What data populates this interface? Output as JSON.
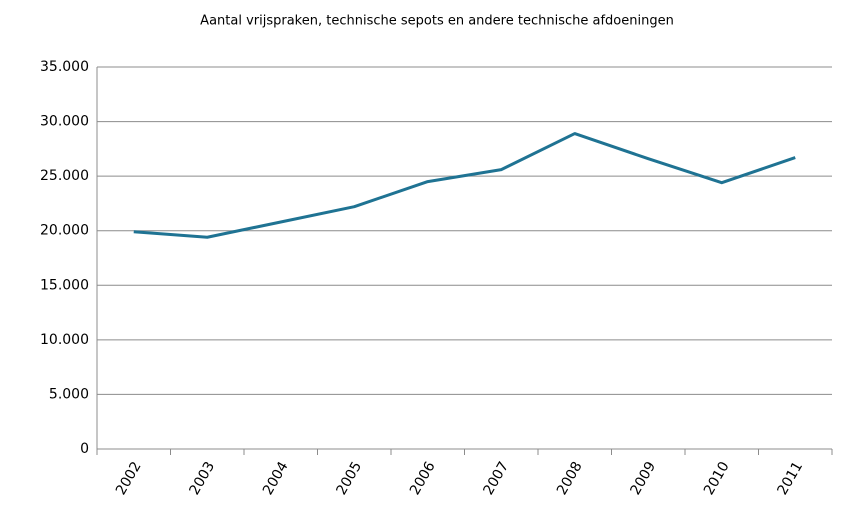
{
  "chart_data": {
    "type": "line",
    "title": "Aantal vrijspraken, technische sepots en andere technische afdoeningen",
    "categories": [
      "2002",
      "2003",
      "2004",
      "2005",
      "2006",
      "2007",
      "2008",
      "2009",
      "2010",
      "2011"
    ],
    "series": [
      {
        "name": "Aantal vrijspraken, technische sepots en andere technische afdoeningen",
        "color": "#1f7393",
        "values": [
          19900,
          19400,
          20800,
          22200,
          24500,
          25600,
          28900,
          26600,
          24400,
          26700
        ]
      }
    ],
    "ylim": [
      0,
      35000
    ],
    "yticks": [
      0,
      {
        "value": 5000,
        "label": "5.000"
      },
      {
        "value": 10000,
        "label": "10.000"
      },
      {
        "value": 15000,
        "label": "15.000"
      },
      {
        "value": 20000,
        "label": "20.000"
      },
      {
        "value": 25000,
        "label": "25.000"
      },
      {
        "value": 30000,
        "label": "30.000"
      },
      {
        "value": 35000,
        "label": "35.000"
      }
    ],
    "grid": true
  }
}
